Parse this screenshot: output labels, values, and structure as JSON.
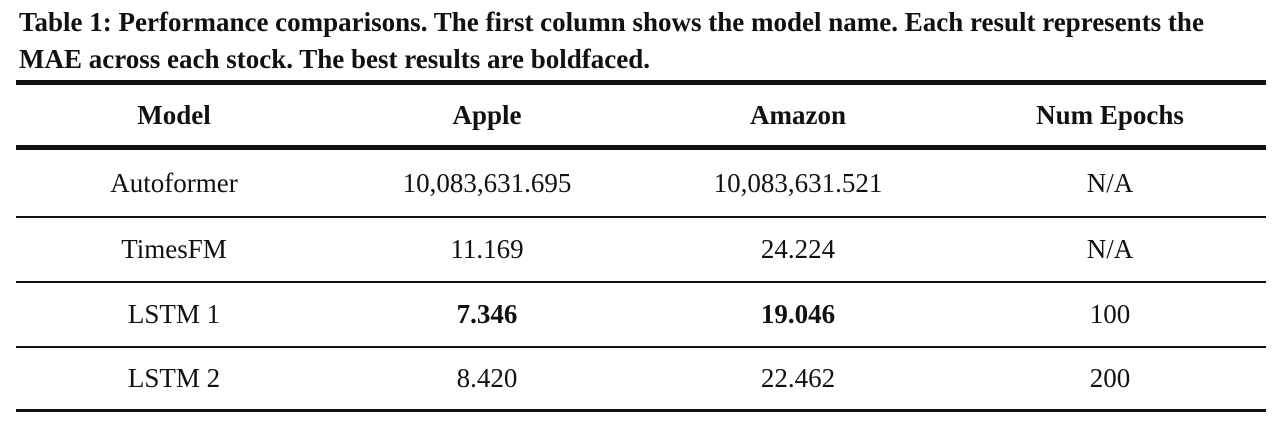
{
  "table": {
    "caption": "Table 1: Performance comparisons. The first column shows the model name. Each result represents the MAE across each stock. The best results are boldfaced.",
    "headers": [
      "Model",
      "Apple",
      "Amazon",
      "Num Epochs"
    ],
    "rows": [
      {
        "model": "Autoformer",
        "apple": "10,083,631.695",
        "amazon": "10,083,631.521",
        "epochs": "N/A"
      },
      {
        "model": "TimesFM",
        "apple": "11.169",
        "amazon": "24.224",
        "epochs": "N/A"
      },
      {
        "model": "LSTM 1",
        "apple": "7.346",
        "amazon": "19.046",
        "epochs": "100"
      },
      {
        "model": "LSTM 2",
        "apple": "8.420",
        "amazon": "22.462",
        "epochs": "200"
      }
    ],
    "bold_cells": [
      "rows.2.apple",
      "rows.2.amazon"
    ]
  }
}
